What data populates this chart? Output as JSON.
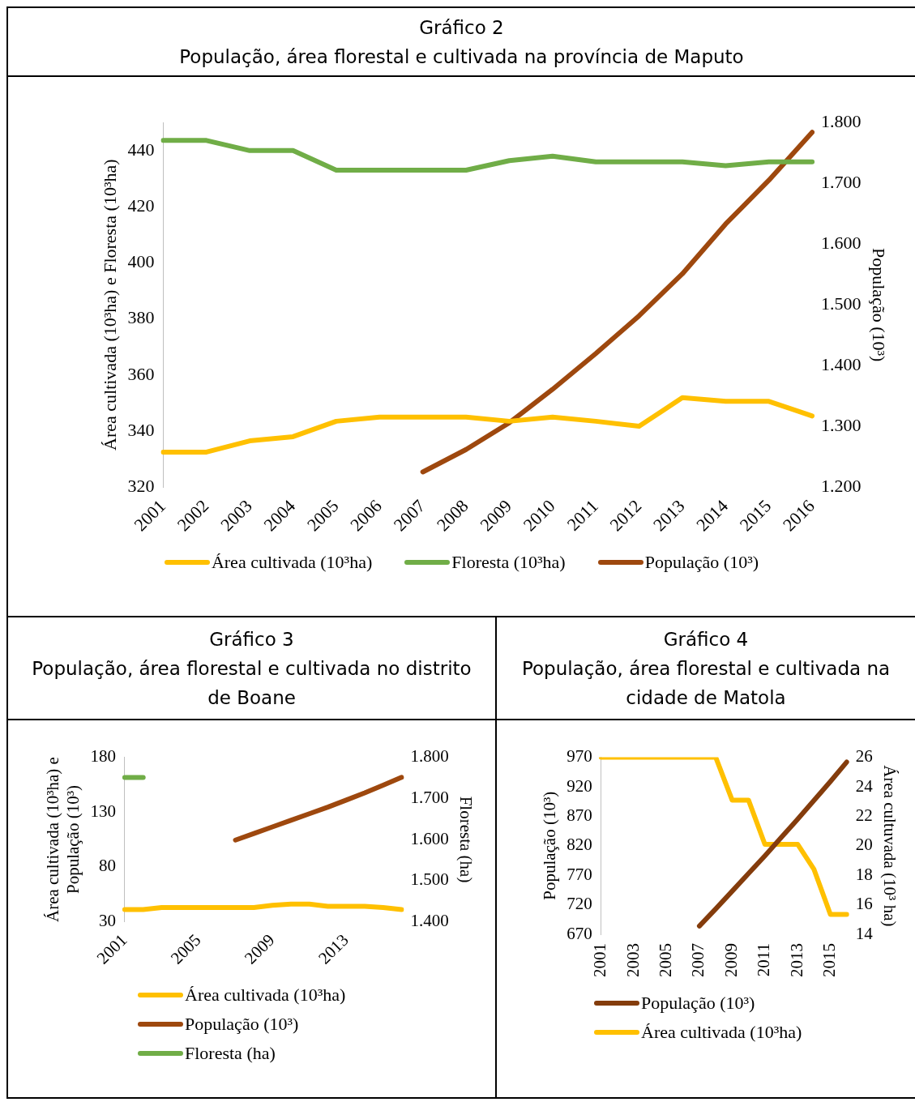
{
  "chart_data": [
    {
      "type": "line",
      "title": "Gráfico 2",
      "subtitle": "População, área florestal e cultivada na província de Maputo",
      "ylabel": "Área cultivada (10³ha) e Floresta (10³ha)",
      "y2label": "População (10³)",
      "categories": [
        "2001",
        "2002",
        "2003",
        "2004",
        "2005",
        "2006",
        "2007",
        "2008",
        "2009",
        "2010",
        "2011",
        "2012",
        "2013",
        "2014",
        "2015",
        "2016"
      ],
      "series": [
        {
          "name": "Área cultivada (10³ha)",
          "color": "#ffc000",
          "values": [
            332.5,
            332.5,
            336.5,
            338,
            343.5,
            345,
            345,
            345,
            343.5,
            345,
            343.5,
            341.7,
            351.9,
            350.6,
            350.6,
            345.4
          ]
        },
        {
          "name": "Floresta (10³ha)",
          "color": "#70ad47",
          "values": [
            443.6,
            443.6,
            440,
            440,
            433,
            433,
            433,
            433,
            436.4,
            438,
            436,
            436,
            436,
            434.6,
            436,
            436
          ]
        },
        {
          "name": "População (10³)",
          "color": "#9e480e",
          "axis": "y2",
          "values": [
            null,
            null,
            null,
            null,
            null,
            null,
            1225,
            1262,
            1306,
            1361,
            1420,
            1482,
            1551,
            1633,
            1705,
            1784
          ]
        }
      ],
      "ylim": [
        320,
        450
      ],
      "yticks": [
        320,
        340,
        360,
        380,
        400,
        420,
        440
      ],
      "y2lim": [
        1200,
        1800
      ],
      "y2ticks": [
        {
          "value": 1200,
          "label": "1.200"
        },
        {
          "value": 1300,
          "label": "1.300"
        },
        {
          "value": 1400,
          "label": "1.400"
        },
        {
          "value": 1500,
          "label": "1.500"
        },
        {
          "value": 1600,
          "label": "1.600"
        },
        {
          "value": 1700,
          "label": "1.700"
        },
        {
          "value": 1800,
          "label": "1.800"
        }
      ],
      "legend": "bottom",
      "marker": "none"
    },
    {
      "type": "line",
      "title": "Gráfico 3",
      "subtitle": "População, área florestal e cultivada no distrito de Boane",
      "ylabel": "Área cultivada (10³ha) e População (10³)",
      "y2label": "Floresta (ha)",
      "categories": [
        "2001",
        null,
        null,
        null,
        "2005",
        null,
        null,
        null,
        "2009",
        null,
        null,
        null,
        "2013",
        null,
        null,
        null
      ],
      "series": [
        {
          "name": "Área cultivada (10³ha)",
          "color": "#ffc000",
          "values": [
            41,
            41,
            43,
            43,
            43,
            43,
            43,
            43,
            44.9,
            46,
            46,
            44,
            44,
            44,
            43,
            41
          ]
        },
        {
          "name": "População (10³)",
          "color": "#9e480e",
          "values": [
            null,
            null,
            null,
            null,
            null,
            null,
            104.5,
            110.5,
            116.5,
            122.5,
            128.5,
            134.5,
            141,
            147.5,
            154.5,
            161.7
          ]
        },
        {
          "name": "Floresta (ha)",
          "color": "#70ad47",
          "axis": "y2",
          "values": [
            1751,
            1751,
            null,
            null,
            null,
            null,
            null,
            null,
            null,
            null,
            null,
            null,
            null,
            null,
            null,
            null
          ]
        }
      ],
      "ylim": [
        30,
        180
      ],
      "yticks": [
        30,
        80,
        130,
        180
      ],
      "y2lim": [
        1400,
        1800
      ],
      "y2ticks": [
        {
          "value": 1400,
          "label": "1.400"
        },
        {
          "value": 1500,
          "label": "1.500"
        },
        {
          "value": 1600,
          "label": "1.600"
        },
        {
          "value": 1700,
          "label": "1.700"
        },
        {
          "value": 1800,
          "label": "1.800"
        }
      ],
      "legend": "bottom",
      "marker": "none"
    },
    {
      "type": "line",
      "title": "Gráfico 4",
      "subtitle": "População, área florestal e cultivada na cidade de Matola",
      "ylabel": "População (10³)",
      "y2label": "Área cultuvada (10³ ha)",
      "categories": [
        "2001",
        null,
        "2003",
        null,
        "2005",
        null,
        "2007",
        null,
        "2009",
        null,
        "2011",
        null,
        "2013",
        null,
        "2015",
        null
      ],
      "series": [
        {
          "name": "População (10³)",
          "color": "#843c0c",
          "values": [
            null,
            null,
            null,
            null,
            null,
            null,
            684,
            713,
            743,
            773,
            803,
            834,
            865,
            897,
            929,
            962
          ]
        },
        {
          "name": "Área cultivada (10³ha)",
          "color": "#ffc000",
          "axis": "y2",
          "values": [
            26,
            26,
            26,
            26,
            26,
            26,
            26,
            26,
            23.1,
            23.1,
            20.1,
            20.1,
            20.1,
            18.4,
            15.35,
            15.35
          ]
        }
      ],
      "ylim": [
        670,
        970
      ],
      "yticks": [
        670,
        720,
        770,
        820,
        870,
        920,
        970
      ],
      "y2lim": [
        14,
        26
      ],
      "y2ticks": [
        14,
        16,
        18,
        20,
        22,
        24,
        26
      ],
      "legend": "bottom",
      "marker": "none"
    }
  ]
}
